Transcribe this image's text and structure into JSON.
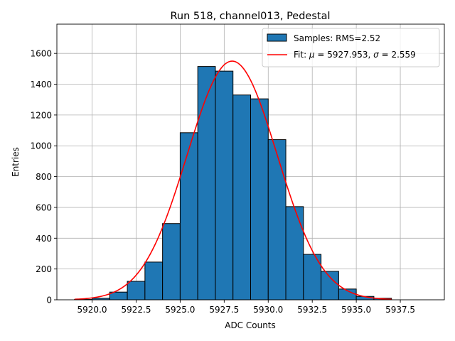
{
  "chart_data": {
    "type": "bar",
    "title": "Run 518, channel013, Pedestal",
    "xlabel": "ADC Counts",
    "ylabel": "Entries",
    "xlim": [
      5918.0,
      5940.0
    ],
    "ylim": [
      0,
      1790
    ],
    "x_ticks": [
      5920.0,
      5922.5,
      5925.0,
      5927.5,
      5930.0,
      5932.5,
      5935.0,
      5937.5
    ],
    "x_tick_labels": [
      "5920.0",
      "5922.5",
      "5925.0",
      "5927.5",
      "5930.0",
      "5932.5",
      "5935.0",
      "5937.5"
    ],
    "y_ticks": [
      0,
      200,
      400,
      600,
      800,
      1000,
      1200,
      1400,
      1600
    ],
    "y_tick_labels": [
      "0",
      "200",
      "400",
      "600",
      "800",
      "1000",
      "1200",
      "1400",
      "1600"
    ],
    "grid": true,
    "legend_position": "top-right",
    "bar_color": "#1f77b4",
    "fit_color": "#ff0000",
    "bins": [
      {
        "left": 5919,
        "right": 5920,
        "value": 2
      },
      {
        "left": 5920,
        "right": 5921,
        "value": 10
      },
      {
        "left": 5921,
        "right": 5922,
        "value": 50
      },
      {
        "left": 5922,
        "right": 5923,
        "value": 120
      },
      {
        "left": 5923,
        "right": 5924,
        "value": 245
      },
      {
        "left": 5924,
        "right": 5925,
        "value": 495
      },
      {
        "left": 5925,
        "right": 5926,
        "value": 1085
      },
      {
        "left": 5926,
        "right": 5927,
        "value": 1515
      },
      {
        "left": 5927,
        "right": 5928,
        "value": 1485
      },
      {
        "left": 5928,
        "right": 5929,
        "value": 1330
      },
      {
        "left": 5929,
        "right": 5930,
        "value": 1305
      },
      {
        "left": 5930,
        "right": 5931,
        "value": 1040
      },
      {
        "left": 5931,
        "right": 5932,
        "value": 605
      },
      {
        "left": 5932,
        "right": 5933,
        "value": 295
      },
      {
        "left": 5933,
        "right": 5934,
        "value": 185
      },
      {
        "left": 5934,
        "right": 5935,
        "value": 70
      },
      {
        "left": 5935,
        "right": 5936,
        "value": 22
      },
      {
        "left": 5936,
        "right": 5937,
        "value": 10
      }
    ],
    "fit": {
      "mu": 5927.953,
      "sigma": 2.559,
      "amplitude": 1550,
      "x_range": [
        5919,
        5937
      ]
    },
    "legend": [
      {
        "kind": "patch",
        "label": "Samples: RMS=2.52"
      },
      {
        "kind": "line",
        "label_prefix": "Fit: ",
        "mu_symbol": "μ",
        "mu_text": " = 5927.953, ",
        "sigma_symbol": "σ",
        "sigma_text": " = 2.559"
      }
    ]
  }
}
